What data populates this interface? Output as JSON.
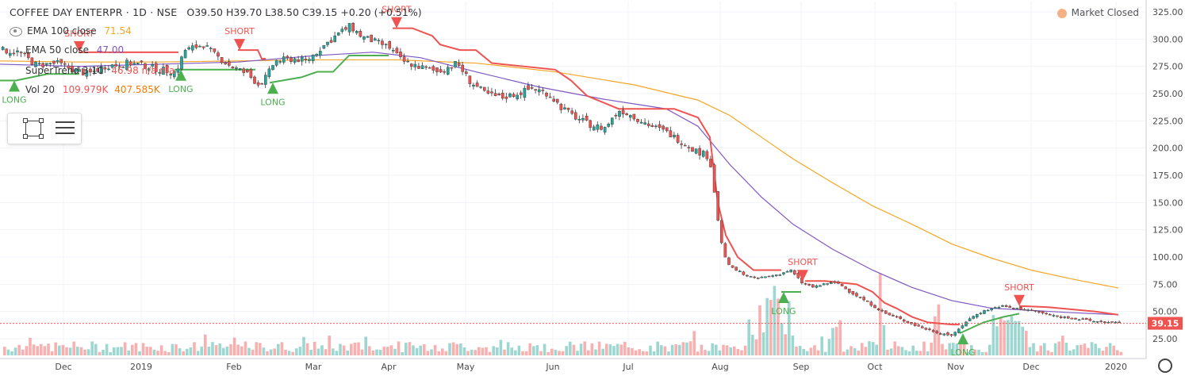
{
  "header": {
    "symbol": "COFFEE DAY ENTERPR · 1D · NSE",
    "ohlc": "O39.50 H39.70 L38.50 C39.15 +0.20 (+0.51%)",
    "market_status": "Market Closed"
  },
  "legend": [
    {
      "label": "EMA 100 close",
      "value": "71.54",
      "color": "#f5a623"
    },
    {
      "label": "EMA 50 close",
      "value": "47.00",
      "color": "#7e57c2"
    },
    {
      "label": "SuperTrend 3 10",
      "value": "46.98  n/a  n/a",
      "color": "#ef5350"
    },
    {
      "label": "Vol 20",
      "value": "109.979K",
      "value2": "407.585K",
      "color": "#ef5350",
      "color2": "#f57c00"
    }
  ],
  "colors": {
    "up": "#26a69a",
    "down": "#ef5350",
    "candle_up_fill": "#26a69a",
    "candle_down_fill": "#ef5350",
    "supertrend_up": "#4caf50",
    "supertrend_down": "#ef5350",
    "ema100": "#f5a623",
    "ema50": "#7e57c2",
    "price_line": "#ef5350",
    "grid": "#f0f3fa"
  },
  "chart_data": {
    "type": "candlestick",
    "title": "COFFEE DAY ENTERPR · 1D · NSE",
    "y_axis": {
      "ticks": [
        25,
        50,
        75,
        100,
        125,
        150,
        175,
        200,
        225,
        250,
        275,
        300,
        325
      ],
      "labels": [
        "25.00",
        "50.00",
        "75.00",
        "100.00",
        "125.00",
        "150.00",
        "175.00",
        "200.00",
        "225.00",
        "250.00",
        "275.00",
        "300.00",
        "325.00"
      ],
      "ylim": [
        12,
        330
      ]
    },
    "x_axis": {
      "labels": [
        "Dec",
        "2019",
        "Feb",
        "Mar",
        "Apr",
        "May",
        "Jun",
        "Jul",
        "Aug",
        "Sep",
        "Oct",
        "Nov",
        "Dec",
        "2020"
      ],
      "xlim": [
        0,
        1445
      ]
    },
    "last_price": "39.15",
    "price_path": [
      [
        0,
        290
      ],
      [
        22,
        288
      ],
      [
        45,
        276
      ],
      [
        70,
        278
      ],
      [
        90,
        272
      ],
      [
        110,
        268
      ],
      [
        130,
        275
      ],
      [
        160,
        278
      ],
      [
        180,
        276
      ],
      [
        200,
        272
      ],
      [
        220,
        270
      ],
      [
        232,
        290
      ],
      [
        255,
        295
      ],
      [
        270,
        285
      ],
      [
        290,
        275
      ],
      [
        310,
        268
      ],
      [
        325,
        258
      ],
      [
        335,
        266
      ],
      [
        345,
        280
      ],
      [
        370,
        282
      ],
      [
        385,
        280
      ],
      [
        400,
        290
      ],
      [
        425,
        305
      ],
      [
        440,
        312
      ],
      [
        455,
        302
      ],
      [
        470,
        298
      ],
      [
        490,
        292
      ],
      [
        505,
        280
      ],
      [
        530,
        274
      ],
      [
        550,
        270
      ],
      [
        575,
        278
      ],
      [
        590,
        262
      ],
      [
        610,
        250
      ],
      [
        630,
        246
      ],
      [
        650,
        250
      ],
      [
        670,
        255
      ],
      [
        690,
        250
      ],
      [
        705,
        238
      ],
      [
        720,
        230
      ],
      [
        740,
        222
      ],
      [
        760,
        218
      ],
      [
        780,
        235
      ],
      [
        800,
        228
      ],
      [
        820,
        220
      ],
      [
        840,
        214
      ],
      [
        860,
        205
      ],
      [
        875,
        198
      ],
      [
        893,
        192
      ],
      [
        900,
        155
      ],
      [
        905,
        125
      ],
      [
        912,
        100
      ],
      [
        920,
        90
      ],
      [
        935,
        85
      ],
      [
        950,
        80
      ],
      [
        965,
        82
      ],
      [
        980,
        84
      ],
      [
        995,
        88
      ],
      [
        1010,
        76
      ],
      [
        1025,
        72
      ],
      [
        1040,
        76
      ],
      [
        1055,
        76
      ],
      [
        1070,
        68
      ],
      [
        1085,
        62
      ],
      [
        1100,
        55
      ],
      [
        1115,
        48
      ],
      [
        1130,
        44
      ],
      [
        1150,
        38
      ],
      [
        1165,
        34
      ],
      [
        1185,
        30
      ],
      [
        1200,
        28
      ],
      [
        1215,
        40
      ],
      [
        1230,
        48
      ],
      [
        1245,
        52
      ],
      [
        1260,
        55
      ],
      [
        1275,
        53
      ],
      [
        1290,
        52
      ],
      [
        1305,
        50
      ],
      [
        1320,
        47
      ],
      [
        1335,
        45
      ],
      [
        1350,
        44
      ],
      [
        1365,
        42
      ],
      [
        1380,
        41
      ],
      [
        1395,
        40
      ],
      [
        1410,
        39.15
      ]
    ],
    "series": [
      {
        "name": "EMA 100 close",
        "points": [
          [
            0,
            280
          ],
          [
            100,
            279
          ],
          [
            200,
            279
          ],
          [
            300,
            280
          ],
          [
            400,
            281
          ],
          [
            500,
            281
          ],
          [
            600,
            278
          ],
          [
            700,
            270
          ],
          [
            800,
            258
          ],
          [
            880,
            244
          ],
          [
            920,
            230
          ],
          [
            960,
            210
          ],
          [
            1000,
            190
          ],
          [
            1050,
            168
          ],
          [
            1100,
            147
          ],
          [
            1150,
            130
          ],
          [
            1200,
            112
          ],
          [
            1250,
            99
          ],
          [
            1300,
            88
          ],
          [
            1350,
            80
          ],
          [
            1410,
            71.54
          ]
        ]
      },
      {
        "name": "EMA 50 close",
        "points": [
          [
            0,
            277
          ],
          [
            100,
            275
          ],
          [
            200,
            277
          ],
          [
            300,
            279
          ],
          [
            400,
            285
          ],
          [
            470,
            288
          ],
          [
            530,
            283
          ],
          [
            600,
            270
          ],
          [
            680,
            256
          ],
          [
            760,
            245
          ],
          [
            840,
            236
          ],
          [
            880,
            220
          ],
          [
            920,
            185
          ],
          [
            960,
            155
          ],
          [
            1000,
            130
          ],
          [
            1050,
            107
          ],
          [
            1100,
            88
          ],
          [
            1150,
            72
          ],
          [
            1200,
            60
          ],
          [
            1250,
            53
          ],
          [
            1300,
            51
          ],
          [
            1350,
            49
          ],
          [
            1410,
            47
          ]
        ]
      },
      {
        "name": "Vol 20",
        "note": "volume bars shown on bottom band"
      }
    ],
    "supertrend": {
      "up_segments": [
        [
          [
            0,
            262
          ],
          [
            20,
            262
          ],
          [
            40,
            265
          ],
          [
            60,
            268
          ],
          [
            90,
            268
          ],
          [
            100,
            268
          ]
        ],
        [
          [
            220,
            272
          ],
          [
            250,
            272
          ],
          [
            300,
            272
          ],
          [
            322,
            272
          ]
        ],
        [
          [
            340,
            260
          ],
          [
            380,
            265
          ],
          [
            400,
            270
          ],
          [
            420,
            270
          ],
          [
            440,
            285
          ],
          [
            490,
            285
          ]
        ],
        [
          [
            985,
            68
          ],
          [
            1010,
            68
          ]
        ],
        [
          [
            1210,
            30
          ],
          [
            1240,
            40
          ],
          [
            1265,
            45
          ],
          [
            1285,
            48
          ]
        ]
      ],
      "down_segments": [
        [
          [
            100,
            288
          ],
          [
            180,
            288
          ],
          [
            225,
            288
          ]
        ],
        [
          [
            300,
            290
          ],
          [
            325,
            290
          ],
          [
            330,
            282
          ],
          [
            335,
            282
          ]
        ],
        [
          [
            495,
            310
          ],
          [
            520,
            310
          ],
          [
            545,
            303
          ],
          [
            555,
            295
          ],
          [
            580,
            290
          ],
          [
            600,
            290
          ],
          [
            620,
            278
          ],
          [
            700,
            272
          ],
          [
            720,
            262
          ],
          [
            740,
            248
          ],
          [
            760,
            242
          ],
          [
            780,
            236
          ],
          [
            850,
            236
          ],
          [
            880,
            228
          ],
          [
            895,
            210
          ],
          [
            905,
            150
          ],
          [
            915,
            120
          ],
          [
            930,
            100
          ],
          [
            950,
            88
          ],
          [
            985,
            88
          ]
        ],
        [
          [
            1015,
            78
          ],
          [
            1040,
            78
          ],
          [
            1080,
            75
          ],
          [
            1100,
            68
          ],
          [
            1115,
            58
          ],
          [
            1130,
            53
          ],
          [
            1150,
            45
          ],
          [
            1170,
            40
          ],
          [
            1200,
            38
          ],
          [
            1210,
            38
          ]
        ],
        [
          [
            1285,
            55
          ],
          [
            1320,
            54
          ],
          [
            1350,
            52
          ],
          [
            1380,
            50
          ],
          [
            1410,
            46.98
          ]
        ]
      ],
      "signals": [
        {
          "type": "LONG",
          "x": 18,
          "y": 262
        },
        {
          "type": "SHORT",
          "x": 100,
          "y": 288
        },
        {
          "type": "LONG",
          "x": 228,
          "y": 272
        },
        {
          "type": "SHORT",
          "x": 302,
          "y": 290
        },
        {
          "type": "LONG",
          "x": 344,
          "y": 260
        },
        {
          "type": "SHORT",
          "x": 500,
          "y": 310
        },
        {
          "type": "LONG",
          "x": 988,
          "y": 68
        },
        {
          "type": "SHORT",
          "x": 1012,
          "y": 78
        },
        {
          "type": "LONG",
          "x": 1214,
          "y": 30
        },
        {
          "type": "SHORT",
          "x": 1285,
          "y": 55
        }
      ]
    },
    "signal_labels": {
      "LONG": "LONG",
      "SHORT": "SHORT"
    }
  }
}
